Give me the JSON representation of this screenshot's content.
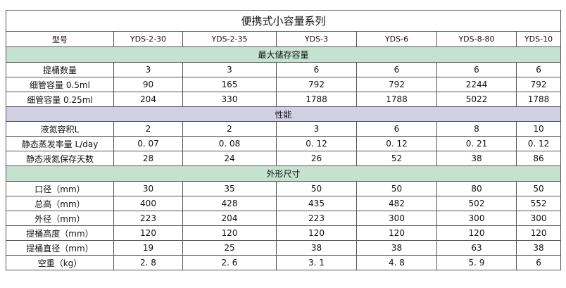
{
  "title": "便携式小容量系列",
  "header": {
    "label": "型号",
    "models": [
      "YDS-2-30",
      "YDS-2-35",
      "YDS-3",
      "YDS-6",
      "YDS-8-80",
      "YDS-10"
    ]
  },
  "sections": [
    {
      "title": "最大储存容量",
      "rows": [
        {
          "label": "提桶数量",
          "values": [
            "3",
            "3",
            "6",
            "6",
            "6",
            "6"
          ]
        },
        {
          "label": "细管容量 0.5ml",
          "values": [
            "90",
            "165",
            "792",
            "792",
            "2244",
            "792"
          ]
        },
        {
          "label": "细管容量 0.25ml",
          "values": [
            "204",
            "330",
            "1788",
            "1788",
            "5022",
            "1788"
          ]
        }
      ]
    },
    {
      "title": "性能",
      "rows": [
        {
          "label": "液氮容积L",
          "values": [
            "2",
            "2",
            "3",
            "6",
            "8",
            "10"
          ]
        },
        {
          "label": "静态蒸发率量 L/day",
          "values": [
            "0. 07",
            "0. 08",
            "0. 12",
            "0. 12",
            "0. 21",
            "0. 12"
          ]
        },
        {
          "label": "静态液氮保存天数",
          "values": [
            "28",
            "24",
            "26",
            "52",
            "38",
            "86"
          ]
        }
      ]
    },
    {
      "title": "外形尺寸",
      "rows": [
        {
          "label": "口径（mm）",
          "values": [
            "30",
            "35",
            "50",
            "50",
            "80",
            "50"
          ]
        },
        {
          "label": "总高（mm）",
          "values": [
            "400",
            "428",
            "435",
            "482",
            "502",
            "552"
          ]
        },
        {
          "label": "外径（mm）",
          "values": [
            "223",
            "204",
            "223",
            "300",
            "300",
            "300"
          ]
        },
        {
          "label": "提桶高度（mm）",
          "values": [
            "120",
            "120",
            "120",
            "120",
            "120",
            "120"
          ]
        },
        {
          "label": "提桶直径（mm）",
          "values": [
            "19",
            "25",
            "38",
            "38",
            "63",
            "38"
          ]
        },
        {
          "label": "空重（kg）",
          "values": [
            "2. 8",
            "2. 6",
            "3. 1",
            "4. 8",
            "5. 9",
            "6"
          ]
        }
      ]
    }
  ],
  "colors": {
    "section_green": "#c4e2cf",
    "section_purple": "#d2d0e4",
    "border": "#555555"
  }
}
